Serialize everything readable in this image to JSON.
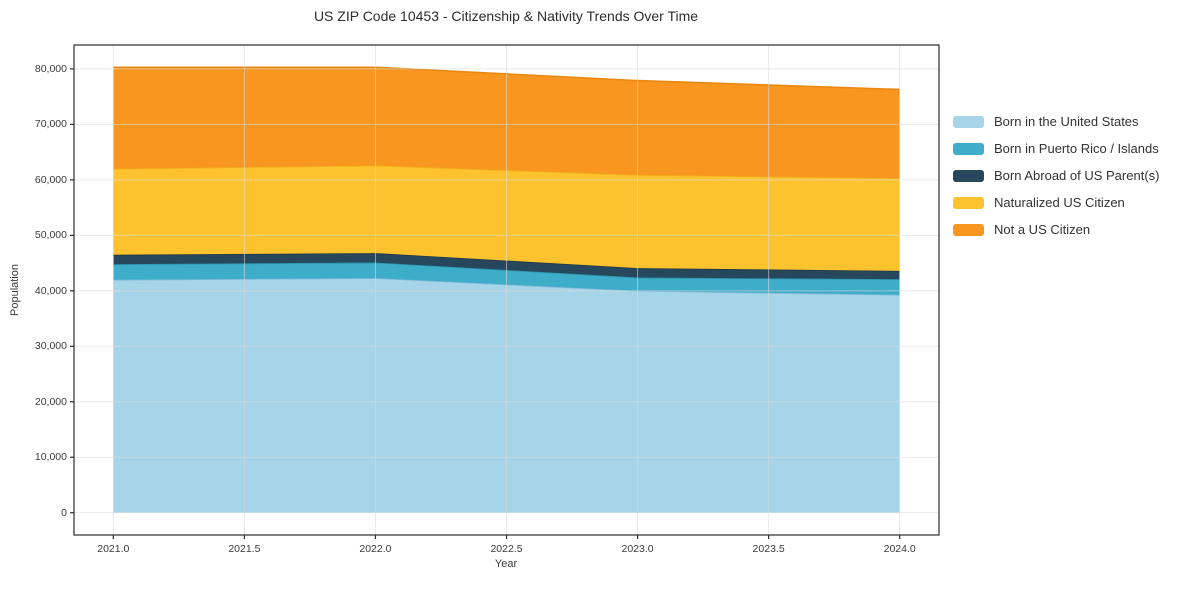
{
  "title": "US ZIP Code 10453 - Citizenship & Nativity Trends Over Time",
  "chart_data": {
    "type": "area",
    "stacked": true,
    "title": "US ZIP Code 10453 - Citizenship & Nativity Trends Over Time",
    "xlabel": "Year",
    "ylabel": "Population",
    "x": [
      2021,
      2022,
      2023,
      2024
    ],
    "series": [
      {
        "name": "Born in the United States",
        "values": [
          42000,
          42300,
          40000,
          39300
        ],
        "color": "#a6d4e8",
        "edge": "#7fb9d8"
      },
      {
        "name": "Born in Puerto Rico / Islands",
        "values": [
          2800,
          2800,
          2400,
          2800
        ],
        "color": "#3dadc9",
        "edge": "#2b93ae"
      },
      {
        "name": "Born Abroad of US Parent(s)",
        "values": [
          1700,
          1700,
          1700,
          1500
        ],
        "color": "#27485c",
        "edge": "#1c3747"
      },
      {
        "name": "Naturalized US Citizen",
        "values": [
          15500,
          15800,
          16800,
          16700
        ],
        "color": "#fdc32f",
        "edge": "#eeb017"
      },
      {
        "name": "Not a US Citizen",
        "values": [
          18300,
          17700,
          17000,
          16000
        ],
        "color": "#f8961f",
        "edge": "#e98810"
      }
    ],
    "totals": [
      80300,
      80300,
      77900,
      76300
    ],
    "x_ticks": [
      {
        "v": 2021.0,
        "label": "2021.0"
      },
      {
        "v": 2021.5,
        "label": "2021.5"
      },
      {
        "v": 2022.0,
        "label": "2022.0"
      },
      {
        "v": 2022.5,
        "label": "2022.5"
      },
      {
        "v": 2023.0,
        "label": "2023.0"
      },
      {
        "v": 2023.5,
        "label": "2023.5"
      },
      {
        "v": 2024.0,
        "label": "2024.0"
      }
    ],
    "y_ticks": [
      {
        "v": 0,
        "label": "0"
      },
      {
        "v": 10000,
        "label": "10,000"
      },
      {
        "v": 20000,
        "label": "20,000"
      },
      {
        "v": 30000,
        "label": "30,000"
      },
      {
        "v": 40000,
        "label": "40,000"
      },
      {
        "v": 50000,
        "label": "50,000"
      },
      {
        "v": 60000,
        "label": "60,000"
      },
      {
        "v": 70000,
        "label": "70,000"
      },
      {
        "v": 80000,
        "label": "80,000"
      }
    ],
    "xlim": [
      2020.85,
      2024.15
    ],
    "ylim": [
      -4015,
      84315
    ],
    "grid": true,
    "grid_color": "#dadada",
    "spine_color": "#2b2b2b",
    "legend_position": "right-outside"
  }
}
